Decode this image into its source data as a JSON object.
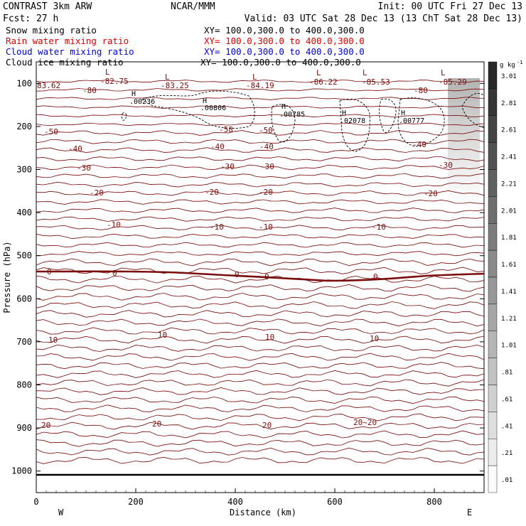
{
  "header": {
    "left_title": "CONTRAST  3km ARW",
    "left_fcst": "Fcst:   27 h",
    "center": "NCAR/MMM",
    "init": "Init: 00 UTC Fri 27 Dec 13",
    "valid": "Valid: 03 UTC Sat 28 Dec 13 (13 ChT Sat 28 Dec 13)"
  },
  "legend": [
    {
      "name": "Snow mixing ratio",
      "xs": "XY= 100.0,300.0 to 400.0,300.0",
      "color": "#000000"
    },
    {
      "name": "Rain water mixing ratio",
      "xs": "XY= 100.0,300.0 to 400.0,300.0",
      "color": "#dd0000"
    },
    {
      "name": "Cloud water mixing ratio",
      "xs": "XY= 100.0,300.0 to 400.0,300.0",
      "color": "#0000dd"
    },
    {
      "name": "Cloud ice mixing ratio",
      "xs": "XY= 100.0,300.0 to 400.0,300.0",
      "color": "#000000"
    }
  ],
  "chart_data": {
    "type": "contour",
    "xlabel": "Distance (km)",
    "ylabel": "Pressure (hPa)",
    "xlim": [
      0,
      900
    ],
    "ylim": [
      1050,
      50
    ],
    "xticks": [
      "0",
      "200",
      "400",
      "600",
      "800"
    ],
    "yticks": [
      "100",
      "200",
      "300",
      "400",
      "500",
      "600",
      "700",
      "800",
      "900",
      "1000"
    ],
    "end_labels": {
      "left": "W",
      "right": "E"
    },
    "colorbar": {
      "unit": "g kg",
      "unit_exp": "-1",
      "labels": [
        "3.01",
        "2.81",
        "2.61",
        "2.41",
        "2.21",
        "2.01",
        "1.81",
        "1.61",
        "1.41",
        "1.21",
        "1.01",
        ".81",
        ".61",
        ".41",
        ".21",
        ".01"
      ]
    },
    "temperature_labels": [
      "-80",
      "-50",
      "-40",
      "-30",
      "-20",
      "-10",
      "0",
      "10",
      "20",
      "20~20",
      "-58",
      "-50"
    ],
    "low_labels": [
      "-82.75",
      "-83.25",
      "-84.19",
      "-86.22",
      "-85.53",
      "-85.29",
      "83.62"
    ],
    "high_labels": [
      ".00236",
      ".00806",
      ".00785",
      ".02078",
      ".00777"
    ],
    "surface_pressure": 1005
  }
}
